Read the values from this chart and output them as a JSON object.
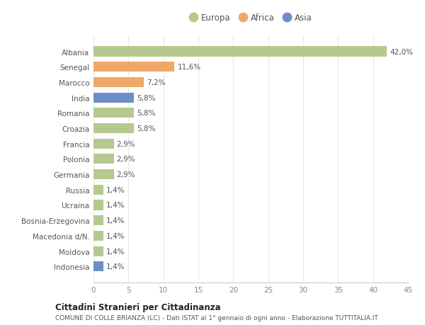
{
  "countries": [
    "Albania",
    "Senegal",
    "Marocco",
    "India",
    "Romania",
    "Croazia",
    "Francia",
    "Polonia",
    "Germania",
    "Russia",
    "Ucraina",
    "Bosnia-Erzegovina",
    "Macedonia d/N.",
    "Moldova",
    "Indonesia"
  ],
  "values": [
    42.0,
    11.6,
    7.2,
    5.8,
    5.8,
    5.8,
    2.9,
    2.9,
    2.9,
    1.4,
    1.4,
    1.4,
    1.4,
    1.4,
    1.4
  ],
  "labels": [
    "42,0%",
    "11,6%",
    "7,2%",
    "5,8%",
    "5,8%",
    "5,8%",
    "2,9%",
    "2,9%",
    "2,9%",
    "1,4%",
    "1,4%",
    "1,4%",
    "1,4%",
    "1,4%",
    "1,4%"
  ],
  "continents": [
    "Europa",
    "Africa",
    "Africa",
    "Asia",
    "Europa",
    "Europa",
    "Europa",
    "Europa",
    "Europa",
    "Europa",
    "Europa",
    "Europa",
    "Europa",
    "Europa",
    "Asia"
  ],
  "colors": {
    "Europa": "#b5c98e",
    "Africa": "#f0a868",
    "Asia": "#6d8fc7"
  },
  "legend_order": [
    "Europa",
    "Africa",
    "Asia"
  ],
  "title1": "Cittadini Stranieri per Cittadinanza",
  "title2": "COMUNE DI COLLE BRIANZA (LC) - Dati ISTAT al 1° gennaio di ogni anno - Elaborazione TUTTITALIA.IT",
  "xlim": [
    0,
    45
  ],
  "xticks": [
    0,
    5,
    10,
    15,
    20,
    25,
    30,
    35,
    40,
    45
  ],
  "background_color": "#ffffff",
  "grid_color": "#e8e8e8",
  "bar_height": 0.65
}
